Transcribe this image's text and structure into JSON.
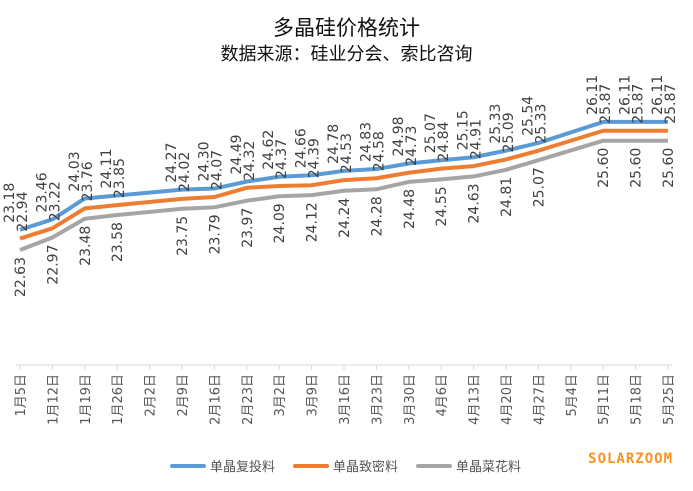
{
  "chart_data": {
    "type": "line",
    "title": "多晶硅价格统计",
    "subtitle": "数据来源：硅业分会、索比咨询",
    "categories": [
      "1月5日",
      "1月12日",
      "1月19日",
      "1月26日",
      "2月2日",
      "2月9日",
      "2月16日",
      "2月23日",
      "3月2日",
      "3月9日",
      "3月16日",
      "3月23日",
      "3月30日",
      "4月6日",
      "4月13日",
      "4月20日",
      "4月27日",
      "5月4日",
      "5月11日",
      "5月18日",
      "5月25日"
    ],
    "series": [
      {
        "name": "单晶复投料",
        "color": "#5b9bd5",
        "values": [
          23.18,
          23.46,
          24.03,
          24.11,
          null,
          24.27,
          24.3,
          24.49,
          24.62,
          24.66,
          24.78,
          24.83,
          24.98,
          25.07,
          25.15,
          25.33,
          25.54,
          null,
          26.11,
          26.11,
          26.11
        ]
      },
      {
        "name": "单晶致密料",
        "color": "#ed7d31",
        "values": [
          22.94,
          23.22,
          23.76,
          23.85,
          null,
          24.02,
          24.07,
          24.32,
          24.37,
          24.39,
          24.53,
          24.58,
          24.73,
          24.84,
          24.91,
          25.09,
          25.33,
          null,
          25.87,
          25.87,
          25.87
        ]
      },
      {
        "name": "单晶菜花料",
        "color": "#a5a5a5",
        "values": [
          22.63,
          22.97,
          23.48,
          23.58,
          null,
          23.75,
          23.79,
          23.97,
          24.09,
          24.12,
          24.24,
          24.28,
          24.48,
          24.55,
          24.63,
          24.81,
          25.07,
          null,
          25.6,
          25.6,
          25.6
        ]
      }
    ],
    "legend": "bottom",
    "grid": false,
    "ylim": [
      22.4,
      26.4
    ]
  },
  "brand": "SOLARZOOM"
}
